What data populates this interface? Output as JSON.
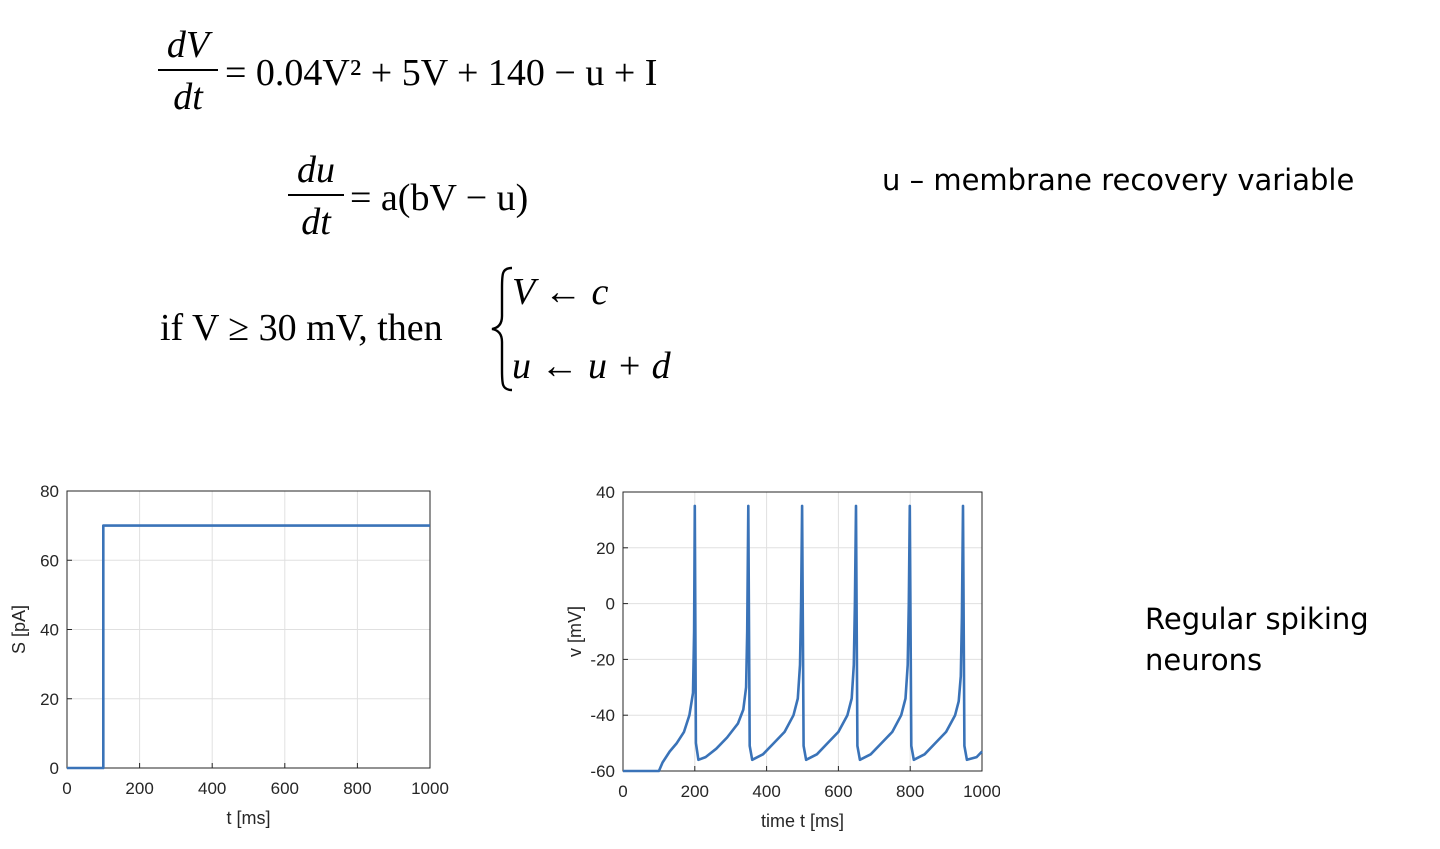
{
  "equations": {
    "eq1": {
      "num": "dV",
      "den": "dt",
      "rhs": "= 0.04V² + 5V + 140 − u + I"
    },
    "eq2": {
      "num": "du",
      "den": "dt",
      "rhs": "= a(bV − u)"
    },
    "eq3": {
      "condition": "if V ≥ 30 mV, then",
      "case1": "V ← c",
      "case2": "u ← u + d"
    }
  },
  "notes": {
    "recovery": "u – membrane recovery variable",
    "spiking_line1": "Regular spiking",
    "spiking_line2": "neurons"
  },
  "colors": {
    "line": "#3a73b8",
    "grid": "#e0e0e0",
    "axis": "#262626"
  },
  "chart_data": [
    {
      "type": "line",
      "xlabel": "t  [ms]",
      "ylabel": "S  [pA]",
      "xlim": [
        0,
        1000
      ],
      "ylim": [
        0,
        80
      ],
      "xticks": [
        0,
        200,
        400,
        600,
        800,
        1000
      ],
      "yticks": [
        0,
        20,
        40,
        60,
        80
      ],
      "grid": true,
      "x": [
        0,
        100,
        100,
        1000
      ],
      "y": [
        0,
        0,
        70,
        70
      ]
    },
    {
      "type": "line",
      "xlabel": "time  t  [ms]",
      "ylabel": "v  [mV]",
      "xlim": [
        0,
        1000
      ],
      "ylim": [
        -60,
        40
      ],
      "xticks": [
        0,
        200,
        400,
        600,
        800,
        1000
      ],
      "yticks": [
        -60,
        -40,
        -20,
        0,
        20,
        40
      ],
      "grid": true,
      "x": [
        0,
        100,
        110,
        130,
        150,
        170,
        185,
        195,
        198,
        200,
        203,
        210,
        230,
        260,
        290,
        320,
        335,
        343,
        346,
        349,
        353,
        360,
        390,
        420,
        450,
        475,
        487,
        493,
        496,
        499,
        503,
        510,
        540,
        570,
        600,
        625,
        637,
        643,
        646,
        649,
        653,
        660,
        690,
        720,
        750,
        775,
        787,
        793,
        796,
        799,
        803,
        810,
        840,
        870,
        900,
        925,
        935,
        941,
        944,
        947,
        951,
        958,
        985,
        1000
      ],
      "y": [
        -60,
        -60,
        -57,
        -53,
        -50,
        -46,
        -40,
        -32,
        -10,
        35,
        -50,
        -56,
        -55,
        -52,
        -48,
        -43,
        -38,
        -30,
        -10,
        35,
        -51,
        -56,
        -54,
        -50,
        -46,
        -40,
        -34,
        -22,
        0,
        35,
        -51,
        -56,
        -54,
        -50,
        -46,
        -40,
        -34,
        -22,
        0,
        35,
        -51,
        -56,
        -54,
        -50,
        -46,
        -40,
        -34,
        -22,
        0,
        35,
        -51,
        -56,
        -54,
        -50,
        -46,
        -40,
        -35,
        -26,
        -5,
        35,
        -51,
        -56,
        -55,
        -53
      ]
    }
  ]
}
